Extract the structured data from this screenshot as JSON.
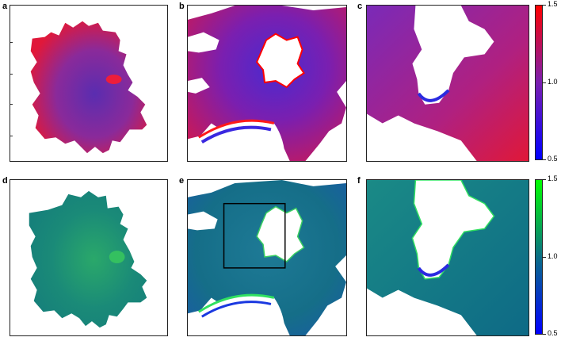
{
  "panels": {
    "a": "a",
    "b": "b",
    "c": "c",
    "d": "d",
    "e": "e",
    "f": "f"
  },
  "colorbar_top": {
    "max": "1.5",
    "mid": "1.0",
    "min": "0.5",
    "colors": [
      "#0000ff",
      "#7a1fb0",
      "#ff0000"
    ]
  },
  "colorbar_bottom": {
    "max": "1.5",
    "mid": "1.0",
    "min": "0.5",
    "colors": [
      "#0000ff",
      "#0a6e86",
      "#00ff00"
    ]
  }
}
